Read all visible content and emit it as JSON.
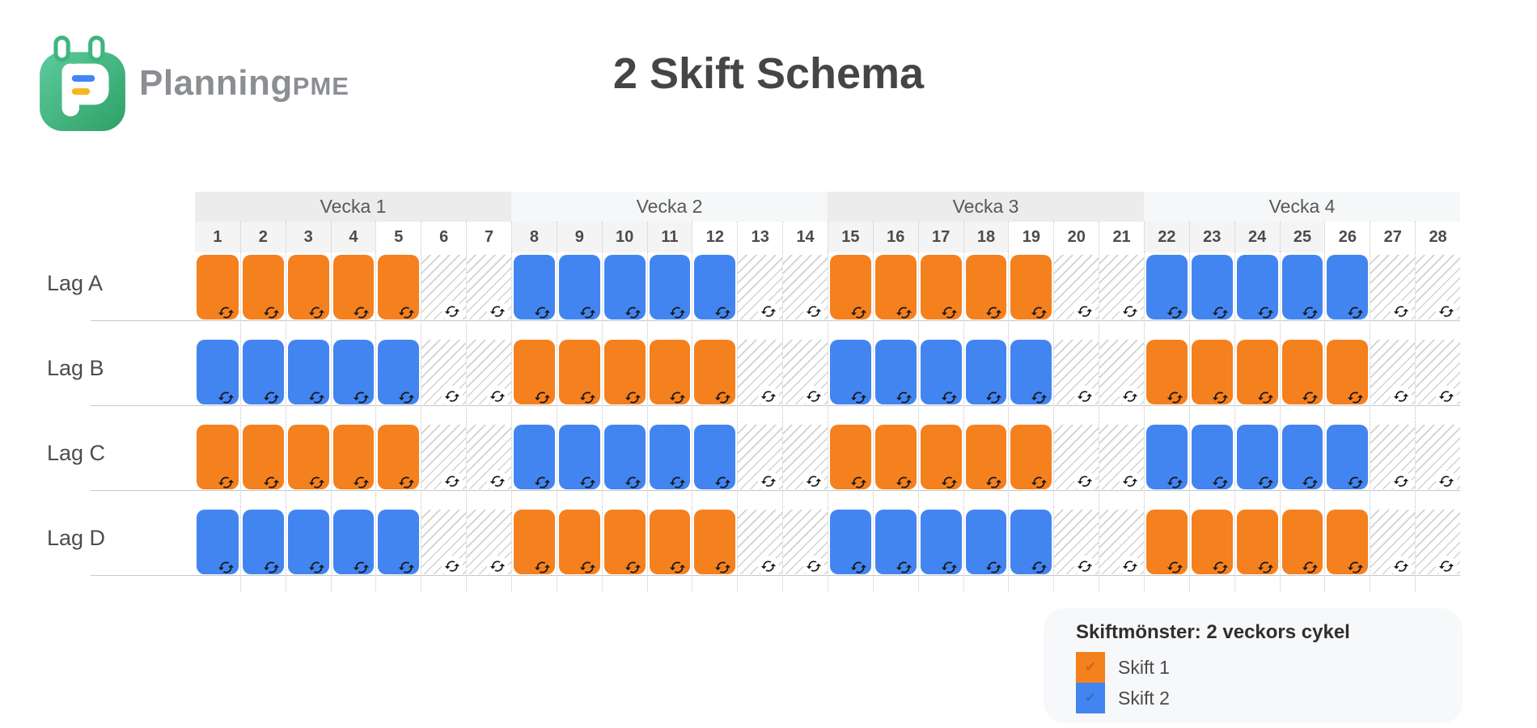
{
  "header": {
    "logo_text": "Planning",
    "logo_suffix": "PME",
    "title": "2 Skift Schema"
  },
  "schedule": {
    "weeks": [
      {
        "label": "Vecka 1"
      },
      {
        "label": "Vecka 2"
      },
      {
        "label": "Vecka 3"
      },
      {
        "label": "Vecka 4"
      }
    ],
    "days": [
      1,
      2,
      3,
      4,
      5,
      6,
      7,
      8,
      9,
      10,
      11,
      12,
      13,
      14,
      15,
      16,
      17,
      18,
      19,
      20,
      21,
      22,
      23,
      24,
      25,
      26,
      27,
      28
    ],
    "teams": [
      {
        "name": "Lag A",
        "pattern": [
          "s1",
          "s1",
          "s1",
          "s1",
          "s1",
          "off",
          "off",
          "s2",
          "s2",
          "s2",
          "s2",
          "s2",
          "off",
          "off",
          "s1",
          "s1",
          "s1",
          "s1",
          "s1",
          "off",
          "off",
          "s2",
          "s2",
          "s2",
          "s2",
          "s2",
          "off",
          "off"
        ]
      },
      {
        "name": "Lag B",
        "pattern": [
          "s2",
          "s2",
          "s2",
          "s2",
          "s2",
          "off",
          "off",
          "s1",
          "s1",
          "s1",
          "s1",
          "s1",
          "off",
          "off",
          "s2",
          "s2",
          "s2",
          "s2",
          "s2",
          "off",
          "off",
          "s1",
          "s1",
          "s1",
          "s1",
          "s1",
          "off",
          "off"
        ]
      },
      {
        "name": "Lag C",
        "pattern": [
          "s1",
          "s1",
          "s1",
          "s1",
          "s1",
          "off",
          "off",
          "s2",
          "s2",
          "s2",
          "s2",
          "s2",
          "off",
          "off",
          "s1",
          "s1",
          "s1",
          "s1",
          "s1",
          "off",
          "off",
          "s2",
          "s2",
          "s2",
          "s2",
          "s2",
          "off",
          "off"
        ]
      },
      {
        "name": "Lag D",
        "pattern": [
          "s2",
          "s2",
          "s2",
          "s2",
          "s2",
          "off",
          "off",
          "s1",
          "s1",
          "s1",
          "s1",
          "s1",
          "off",
          "off",
          "s2",
          "s2",
          "s2",
          "s2",
          "s2",
          "off",
          "off",
          "s1",
          "s1",
          "s1",
          "s1",
          "s1",
          "off",
          "off"
        ]
      }
    ]
  },
  "legend": {
    "title": "Skiftmönster: 2 veckors cykel",
    "items": [
      {
        "key": "s1",
        "label": "Skift 1"
      },
      {
        "key": "s2",
        "label": "Skift 2"
      }
    ]
  },
  "colors": {
    "shift1": "#F5801E",
    "shift2": "#4285F0",
    "off_stripe": "#d2d2d2",
    "icon": "#161616"
  }
}
